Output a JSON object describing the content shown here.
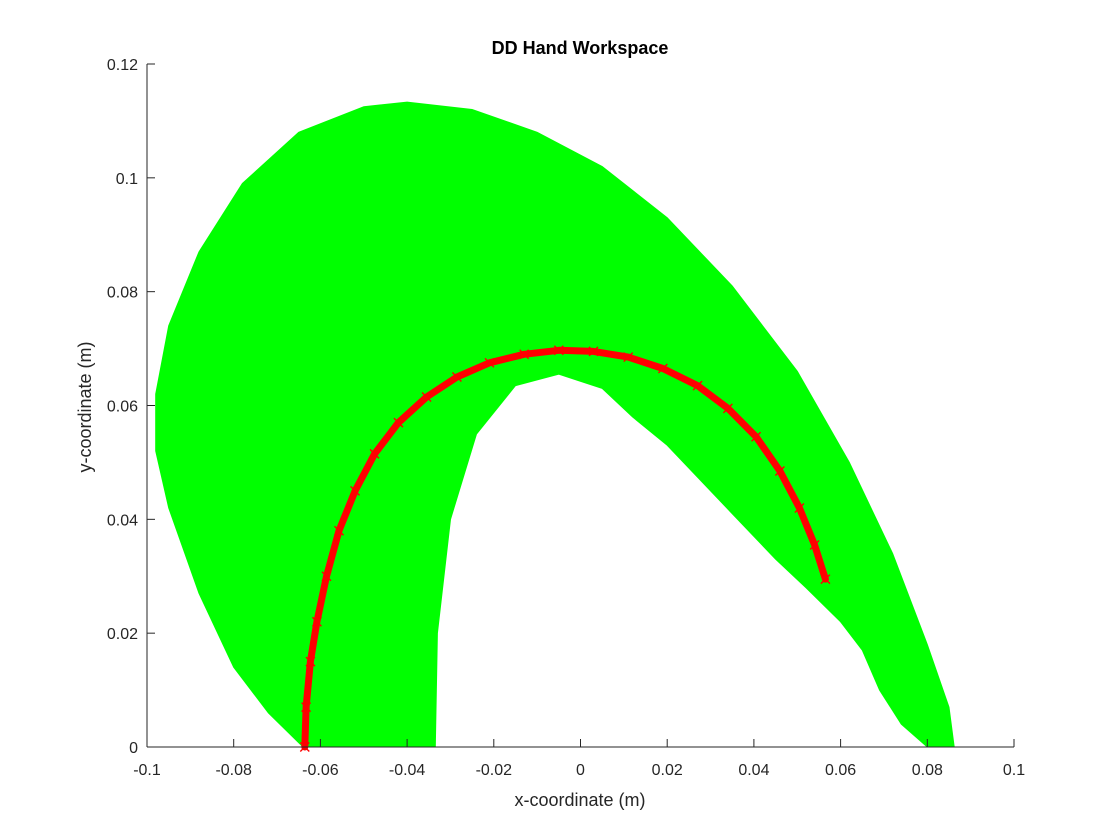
{
  "chart_data": {
    "type": "scatter",
    "title": "DD Hand Workspace",
    "xlabel": "x-coordinate (m)",
    "ylabel": "y-coordinate (m)",
    "xlim": [
      -0.1,
      0.1
    ],
    "ylim": [
      0,
      0.12
    ],
    "xticks": [
      -0.1,
      -0.08,
      -0.06,
      -0.04,
      -0.02,
      0,
      0.02,
      0.04,
      0.06,
      0.08,
      0.1
    ],
    "xtick_labels": [
      "-0.1",
      "-0.08",
      "-0.06",
      "-0.04",
      "-0.02",
      "0",
      "0.02",
      "0.04",
      "0.06",
      "0.08",
      "0.1"
    ],
    "yticks": [
      0,
      0.02,
      0.04,
      0.06,
      0.08,
      0.1,
      0.12
    ],
    "ytick_labels": [
      "0",
      "0.02",
      "0.04",
      "0.06",
      "0.08",
      "0.1",
      "0.12"
    ],
    "grid": false,
    "legend": false,
    "colors": {
      "workspace": "#00ff00",
      "trajectory": "#ff0000",
      "axis": "#262626"
    },
    "workspace_region": {
      "outer": [
        [
          -0.064,
          0.0
        ],
        [
          -0.072,
          0.006
        ],
        [
          -0.08,
          0.014
        ],
        [
          -0.088,
          0.027
        ],
        [
          -0.095,
          0.042
        ],
        [
          -0.098,
          0.052
        ],
        [
          -0.098,
          0.062
        ],
        [
          -0.095,
          0.074
        ],
        [
          -0.088,
          0.087
        ],
        [
          -0.078,
          0.099
        ],
        [
          -0.065,
          0.108
        ],
        [
          -0.05,
          0.1125
        ],
        [
          -0.04,
          0.1133
        ],
        [
          -0.025,
          0.112
        ],
        [
          -0.01,
          0.108
        ],
        [
          0.005,
          0.102
        ],
        [
          0.02,
          0.093
        ],
        [
          0.035,
          0.081
        ],
        [
          0.05,
          0.066
        ],
        [
          0.062,
          0.05
        ],
        [
          0.072,
          0.034
        ],
        [
          0.08,
          0.018
        ],
        [
          0.085,
          0.007
        ],
        [
          0.0862,
          0.0
        ]
      ],
      "inner": [
        [
          0.08,
          0.0
        ],
        [
          0.074,
          0.004
        ],
        [
          0.069,
          0.01
        ],
        [
          0.065,
          0.017
        ],
        [
          0.06,
          0.022
        ],
        [
          0.052,
          0.028
        ],
        [
          0.045,
          0.033
        ],
        [
          0.035,
          0.041
        ],
        [
          0.02,
          0.053
        ],
        [
          0.012,
          0.058
        ],
        [
          0.005,
          0.063
        ],
        [
          -0.005,
          0.0655
        ],
        [
          -0.015,
          0.0635
        ],
        [
          -0.024,
          0.055
        ],
        [
          -0.03,
          0.04
        ],
        [
          -0.033,
          0.02
        ],
        [
          -0.0335,
          0.0
        ]
      ]
    },
    "trajectory": {
      "marker": "x",
      "points": [
        [
          -0.0636,
          0.0
        ],
        [
          -0.0633,
          0.007
        ],
        [
          -0.0623,
          0.015
        ],
        [
          -0.0608,
          0.022
        ],
        [
          -0.0586,
          0.03
        ],
        [
          -0.0557,
          0.038
        ],
        [
          -0.052,
          0.045
        ],
        [
          -0.0475,
          0.0515
        ],
        [
          -0.042,
          0.057
        ],
        [
          -0.0355,
          0.0615
        ],
        [
          -0.0285,
          0.065
        ],
        [
          -0.021,
          0.0675
        ],
        [
          -0.013,
          0.069
        ],
        [
          -0.005,
          0.0697
        ],
        [
          0.003,
          0.0695
        ],
        [
          0.011,
          0.0685
        ],
        [
          0.019,
          0.0665
        ],
        [
          0.027,
          0.0635
        ],
        [
          0.034,
          0.0595
        ],
        [
          0.0405,
          0.0545
        ],
        [
          0.046,
          0.0485
        ],
        [
          0.0505,
          0.042
        ],
        [
          0.054,
          0.0355
        ],
        [
          0.0565,
          0.0295
        ]
      ]
    }
  }
}
